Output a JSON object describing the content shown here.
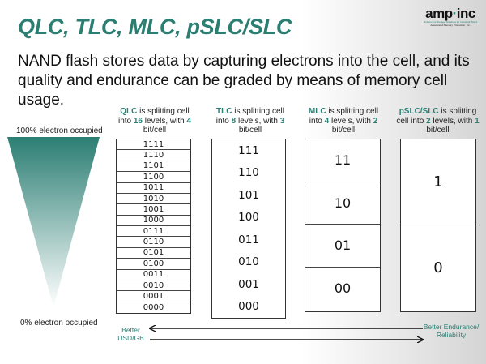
{
  "title": "QLC, TLC, MLC, pSLC/SLC",
  "logo": {
    "wordmark_left": "amp",
    "wordmark_right": "inc",
    "line1": "Robust and Storage Solutions for Industrial World",
    "line2": "Accelerated Memory Production, Inc."
  },
  "subtitle": "NAND flash stores data by capturing electrons into the cell, and its quality and endurance can be graded by means of memory cell usage.",
  "scale": {
    "top_label": "100% electron occupied",
    "bottom_label": "0% electron occupied",
    "gradient_colors": [
      "#2b7e73",
      "#ffffff"
    ]
  },
  "columns": {
    "qlc": {
      "name": "QLC",
      "text1": " is splitting cell into ",
      "levels": "16",
      "text2": " levels, with ",
      "bits": "4",
      "text3": " bit/cell",
      "cells": [
        "1111",
        "1110",
        "1101",
        "1100",
        "1011",
        "1010",
        "1001",
        "1000",
        "0111",
        "0110",
        "0101",
        "0100",
        "0011",
        "0010",
        "0001",
        "0000"
      ]
    },
    "tlc": {
      "name": "TLC",
      "text1": " is splitting cell into ",
      "levels": "8",
      "text2": " levels, with ",
      "bits": "3",
      "text3": " bit/cell",
      "cells": [
        "111",
        "110",
        "101",
        "100",
        "011",
        "010",
        "001",
        "000"
      ]
    },
    "mlc": {
      "name": "MLC",
      "text1": " is splitting cell into ",
      "levels": "4",
      "text2": " levels, with ",
      "bits": "2",
      "text3": " bit/cell",
      "cells": [
        "11",
        "10",
        "01",
        "00"
      ]
    },
    "slc": {
      "name": "pSLC/SLC",
      "text1": " is splitting cell into ",
      "levels": "2",
      "text2": " levels, with ",
      "bits": "1",
      "text3": " bit/cell",
      "cells": [
        "1",
        "0"
      ]
    }
  },
  "bottom": {
    "left_label": "Better USD/GB",
    "right_label": "Better Endurance/ Reliability",
    "arrow_color": "#111111",
    "accent_color": "#2a7e72"
  }
}
